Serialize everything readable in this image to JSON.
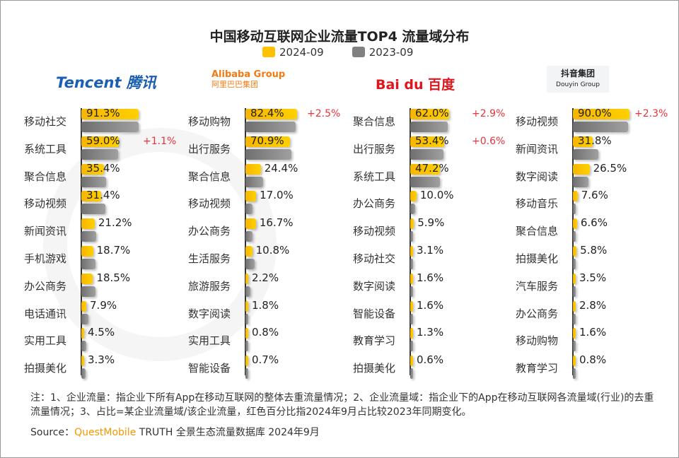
{
  "chart_data": {
    "type": "bar",
    "title": "中国移动互联网企业流量TOP4 流量域分布",
    "legend": [
      {
        "name": "2024-09",
        "color": "#FFC000"
      },
      {
        "name": "2023-09",
        "color": "#808080"
      }
    ],
    "panels": [
      {
        "company": "Tencent 腾讯",
        "categories": [
          "移动社交",
          "系统工具",
          "聚合信息",
          "移动视频",
          "新闻资讯",
          "手机游戏",
          "办公商务",
          "电话通讯",
          "实用工具",
          "拍摄美化"
        ],
        "values_2024": [
          91.3,
          59.0,
          35.4,
          31.4,
          21.2,
          18.7,
          18.5,
          7.9,
          4.5,
          3.3
        ],
        "labels": [
          "91.3%",
          "59.0%",
          "35.4%",
          "31.4%",
          "21.2%",
          "18.7%",
          "18.5%",
          "7.9%",
          "4.5%",
          "3.3%"
        ],
        "values_2023": [
          91.5,
          57.9,
          39,
          38,
          24,
          23,
          23,
          11,
          8,
          7
        ],
        "changes": [
          "",
          "+1.1%",
          "",
          "",
          "",
          "",
          "",
          "",
          "",
          ""
        ]
      },
      {
        "company": "Alibaba Group 阿里巴巴集团",
        "categories": [
          "移动购物",
          "出行服务",
          "聚合信息",
          "移动视频",
          "办公商务",
          "生活服务",
          "旅游服务",
          "数字阅读",
          "实用工具",
          "智能设备"
        ],
        "values_2024": [
          82.4,
          70.9,
          24.4,
          17.0,
          16.7,
          10.8,
          2.2,
          1.8,
          0.8,
          0.7
        ],
        "labels": [
          "82.4%",
          "70.9%",
          "24.4%",
          "17.0%",
          "16.7%",
          "10.8%",
          "2.2%",
          "1.8%",
          "0.8%",
          "0.7%"
        ],
        "values_2023": [
          79.9,
          73,
          28,
          11,
          11,
          15,
          8,
          5,
          4,
          4
        ],
        "changes": [
          "+2.5%",
          "",
          "",
          "",
          "",
          "",
          "",
          "",
          "",
          ""
        ]
      },
      {
        "company": "Baidu 百度",
        "categories": [
          "聚合信息",
          "出行服务",
          "系统工具",
          "办公商务",
          "移动视频",
          "移动社交",
          "数字阅读",
          "智能设备",
          "教育学习",
          "拍摄美化"
        ],
        "values_2024": [
          62.0,
          53.4,
          47.2,
          10.0,
          5.9,
          3.1,
          1.6,
          1.6,
          1.3,
          0.6
        ],
        "labels": [
          "62.0%",
          "53.4%",
          "47.2%",
          "10.0%",
          "5.9%",
          "3.1%",
          "1.6%",
          "1.6%",
          "1.3%",
          "0.6%"
        ],
        "values_2023": [
          59.1,
          52.8,
          47,
          8,
          5,
          4,
          3,
          3,
          3,
          3
        ],
        "changes": [
          "+2.9%",
          "+0.6%",
          "",
          "",
          "",
          "",
          "",
          "",
          "",
          ""
        ]
      },
      {
        "company": "抖音集团 Douyin Group",
        "categories": [
          "移动视频",
          "新闻资讯",
          "数字阅读",
          "移动音乐",
          "聚合信息",
          "拍摄美化",
          "汽车服务",
          "办公商务",
          "移动购物",
          "教育学习"
        ],
        "values_2024": [
          90.0,
          31.8,
          26.5,
          7.6,
          6.6,
          5.8,
          3.5,
          2.8,
          1.6,
          0.8
        ],
        "labels": [
          "90.0%",
          "31.8%",
          "26.5%",
          "7.6%",
          "6.6%",
          "5.8%",
          "3.5%",
          "2.8%",
          "1.6%",
          "0.8%"
        ],
        "values_2023": [
          87.7,
          41,
          25,
          4,
          4,
          4,
          4,
          4,
          4,
          4
        ],
        "changes": [
          "+2.3%",
          "",
          "",
          "",
          "",
          "",
          "",
          "",
          "",
          ""
        ]
      }
    ]
  },
  "logos": {
    "tencent": "Tencent 腾讯",
    "alibaba": "Alibaba Group",
    "alibaba_cn": "阿里巴巴集团",
    "baidu": "Bai du 百度",
    "douyin": "抖音集团",
    "douyin_en": "Douyin Group"
  },
  "watermark": "QUESTMOBILE",
  "note": "注：1、企业流量：指企业下所有App在移动互联网的整体去重流量情况；2、企业流量域：指企业下的App在移动互联网各流量域(行业)的去重流量情况；3、占比=某企业流量域/该企业流量，红色百分比指2024年9月占比较2023年同期变化。",
  "source": {
    "prefix": "Source：",
    "brand": "QuestMobile",
    "rest": " TRUTH 全景生态流量数据库 2024年9月"
  }
}
